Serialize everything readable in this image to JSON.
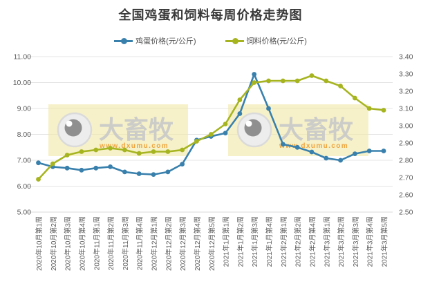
{
  "title": "全国鸡蛋和饲料每周价格走势图",
  "legend": [
    {
      "label": "鸡蛋价格(元/公斤)",
      "color": "#3980ad"
    },
    {
      "label": "饲料价格(元/公斤)",
      "color": "#a6b420"
    }
  ],
  "watermark": {
    "brand": "大畜牧",
    "url": "www.dxumu.com",
    "bg_color": "#f0e8a6",
    "brand_color": "#c9c9c9",
    "url_color": "#f0a43e"
  },
  "chart_data": {
    "type": "line",
    "title": "全国鸡蛋和饲料每周价格走势图",
    "grid": "horizontal",
    "legend_position": "top",
    "categories": [
      "2020年10月第1周",
      "2020年10月第2周",
      "2020年10月第3周",
      "2020年10月第4周",
      "2020年11月第1周",
      "2020年11月第2周",
      "2020年11月第3周",
      "2020年11月第4周",
      "2020年12月第1周",
      "2020年12月第2周",
      "2020年12月第3周",
      "2020年12月第4周",
      "2020年12月第5周",
      "2021年1月第1周",
      "2021年1月第2周",
      "2021年1月第3周",
      "2021年1月第4周",
      "2021年2月第1周",
      "2021年2月第2周",
      "2021年2月第4周",
      "2021年3月第1周",
      "2021年3月第2周",
      "2021年3月第3周",
      "2021年3月第4周",
      "2021年3月第5周"
    ],
    "series": [
      {
        "name": "鸡蛋价格(元/公斤)",
        "axis": "left",
        "color": "#3980ad",
        "values": [
          6.9,
          6.75,
          6.7,
          6.62,
          6.7,
          6.75,
          6.55,
          6.48,
          6.45,
          6.55,
          6.85,
          7.78,
          7.92,
          8.05,
          8.8,
          10.32,
          9.0,
          7.62,
          7.5,
          7.32,
          7.08,
          7.0,
          7.25,
          7.36,
          7.36
        ]
      },
      {
        "name": "饲料价格(元/公斤)",
        "axis": "right",
        "color": "#a6b420",
        "values": [
          2.69,
          2.78,
          2.83,
          2.85,
          2.86,
          2.87,
          2.86,
          2.84,
          2.85,
          2.85,
          2.86,
          2.91,
          2.95,
          3.01,
          3.15,
          3.25,
          3.26,
          3.26,
          3.26,
          3.29,
          3.26,
          3.23,
          3.16,
          3.1,
          3.09
        ]
      }
    ],
    "left_axis": {
      "min": 5.0,
      "max": 11.0,
      "ticks": [
        "11.00",
        "10.00",
        "9.00",
        "8.00",
        "7.00",
        "6.00",
        "5.00"
      ]
    },
    "right_axis": {
      "min": 2.5,
      "max": 3.4,
      "ticks": [
        "3.40",
        "3.30",
        "3.20",
        "3.10",
        "3.00",
        "2.90",
        "2.80",
        "2.70",
        "2.60",
        "2.50"
      ]
    }
  }
}
